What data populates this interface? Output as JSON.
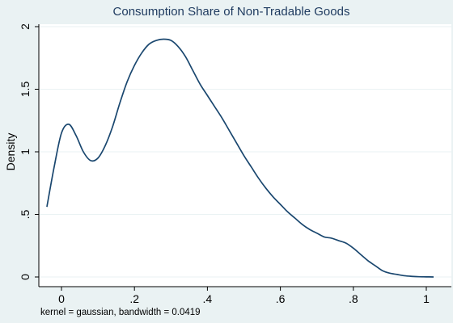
{
  "chart_data": {
    "type": "line",
    "title": "Consumption Share of Non-Tradable Goods",
    "xlabel": "",
    "ylabel": "Density",
    "note": "kernel = gaussian, bandwidth = 0.0419",
    "xlim": [
      -0.05,
      1.05
    ],
    "ylim": [
      0,
      2
    ],
    "x_ticks": [
      0,
      0.2,
      0.4,
      0.6,
      0.8,
      1
    ],
    "x_tick_labels": [
      "0",
      ".2",
      ".4",
      ".6",
      ".8",
      "1"
    ],
    "y_ticks": [
      0,
      0.5,
      1,
      1.5,
      2
    ],
    "y_tick_labels": [
      "0",
      ".5",
      "1",
      "1.5",
      "2"
    ],
    "grid": "horizontal",
    "legend": "none",
    "colors": {
      "background": "#eaf2f3",
      "plot_background": "#ffffff",
      "line": "#1a476f",
      "grid": "#eaf2f3",
      "title": "#1e3a5f"
    },
    "series": [
      {
        "x": [
          -0.04,
          -0.02,
          0.0,
          0.02,
          0.04,
          0.06,
          0.08,
          0.1,
          0.12,
          0.14,
          0.16,
          0.18,
          0.2,
          0.22,
          0.24,
          0.26,
          0.28,
          0.3,
          0.32,
          0.34,
          0.36,
          0.38,
          0.4,
          0.42,
          0.44,
          0.46,
          0.48,
          0.5,
          0.52,
          0.54,
          0.56,
          0.58,
          0.6,
          0.62,
          0.64,
          0.66,
          0.68,
          0.7,
          0.72,
          0.74,
          0.76,
          0.78,
          0.8,
          0.82,
          0.84,
          0.86,
          0.88,
          0.9,
          0.92,
          0.94,
          0.96,
          0.98,
          1.0,
          1.02
        ],
        "y": [
          0.56,
          0.88,
          1.15,
          1.22,
          1.13,
          1.0,
          0.93,
          0.95,
          1.05,
          1.2,
          1.39,
          1.56,
          1.69,
          1.79,
          1.86,
          1.89,
          1.9,
          1.89,
          1.84,
          1.76,
          1.65,
          1.54,
          1.45,
          1.36,
          1.27,
          1.17,
          1.07,
          0.97,
          0.88,
          0.79,
          0.71,
          0.64,
          0.58,
          0.52,
          0.47,
          0.42,
          0.38,
          0.35,
          0.32,
          0.31,
          0.29,
          0.27,
          0.23,
          0.18,
          0.13,
          0.09,
          0.05,
          0.03,
          0.02,
          0.01,
          0.005,
          0.002,
          0.001,
          0.0
        ]
      }
    ]
  }
}
